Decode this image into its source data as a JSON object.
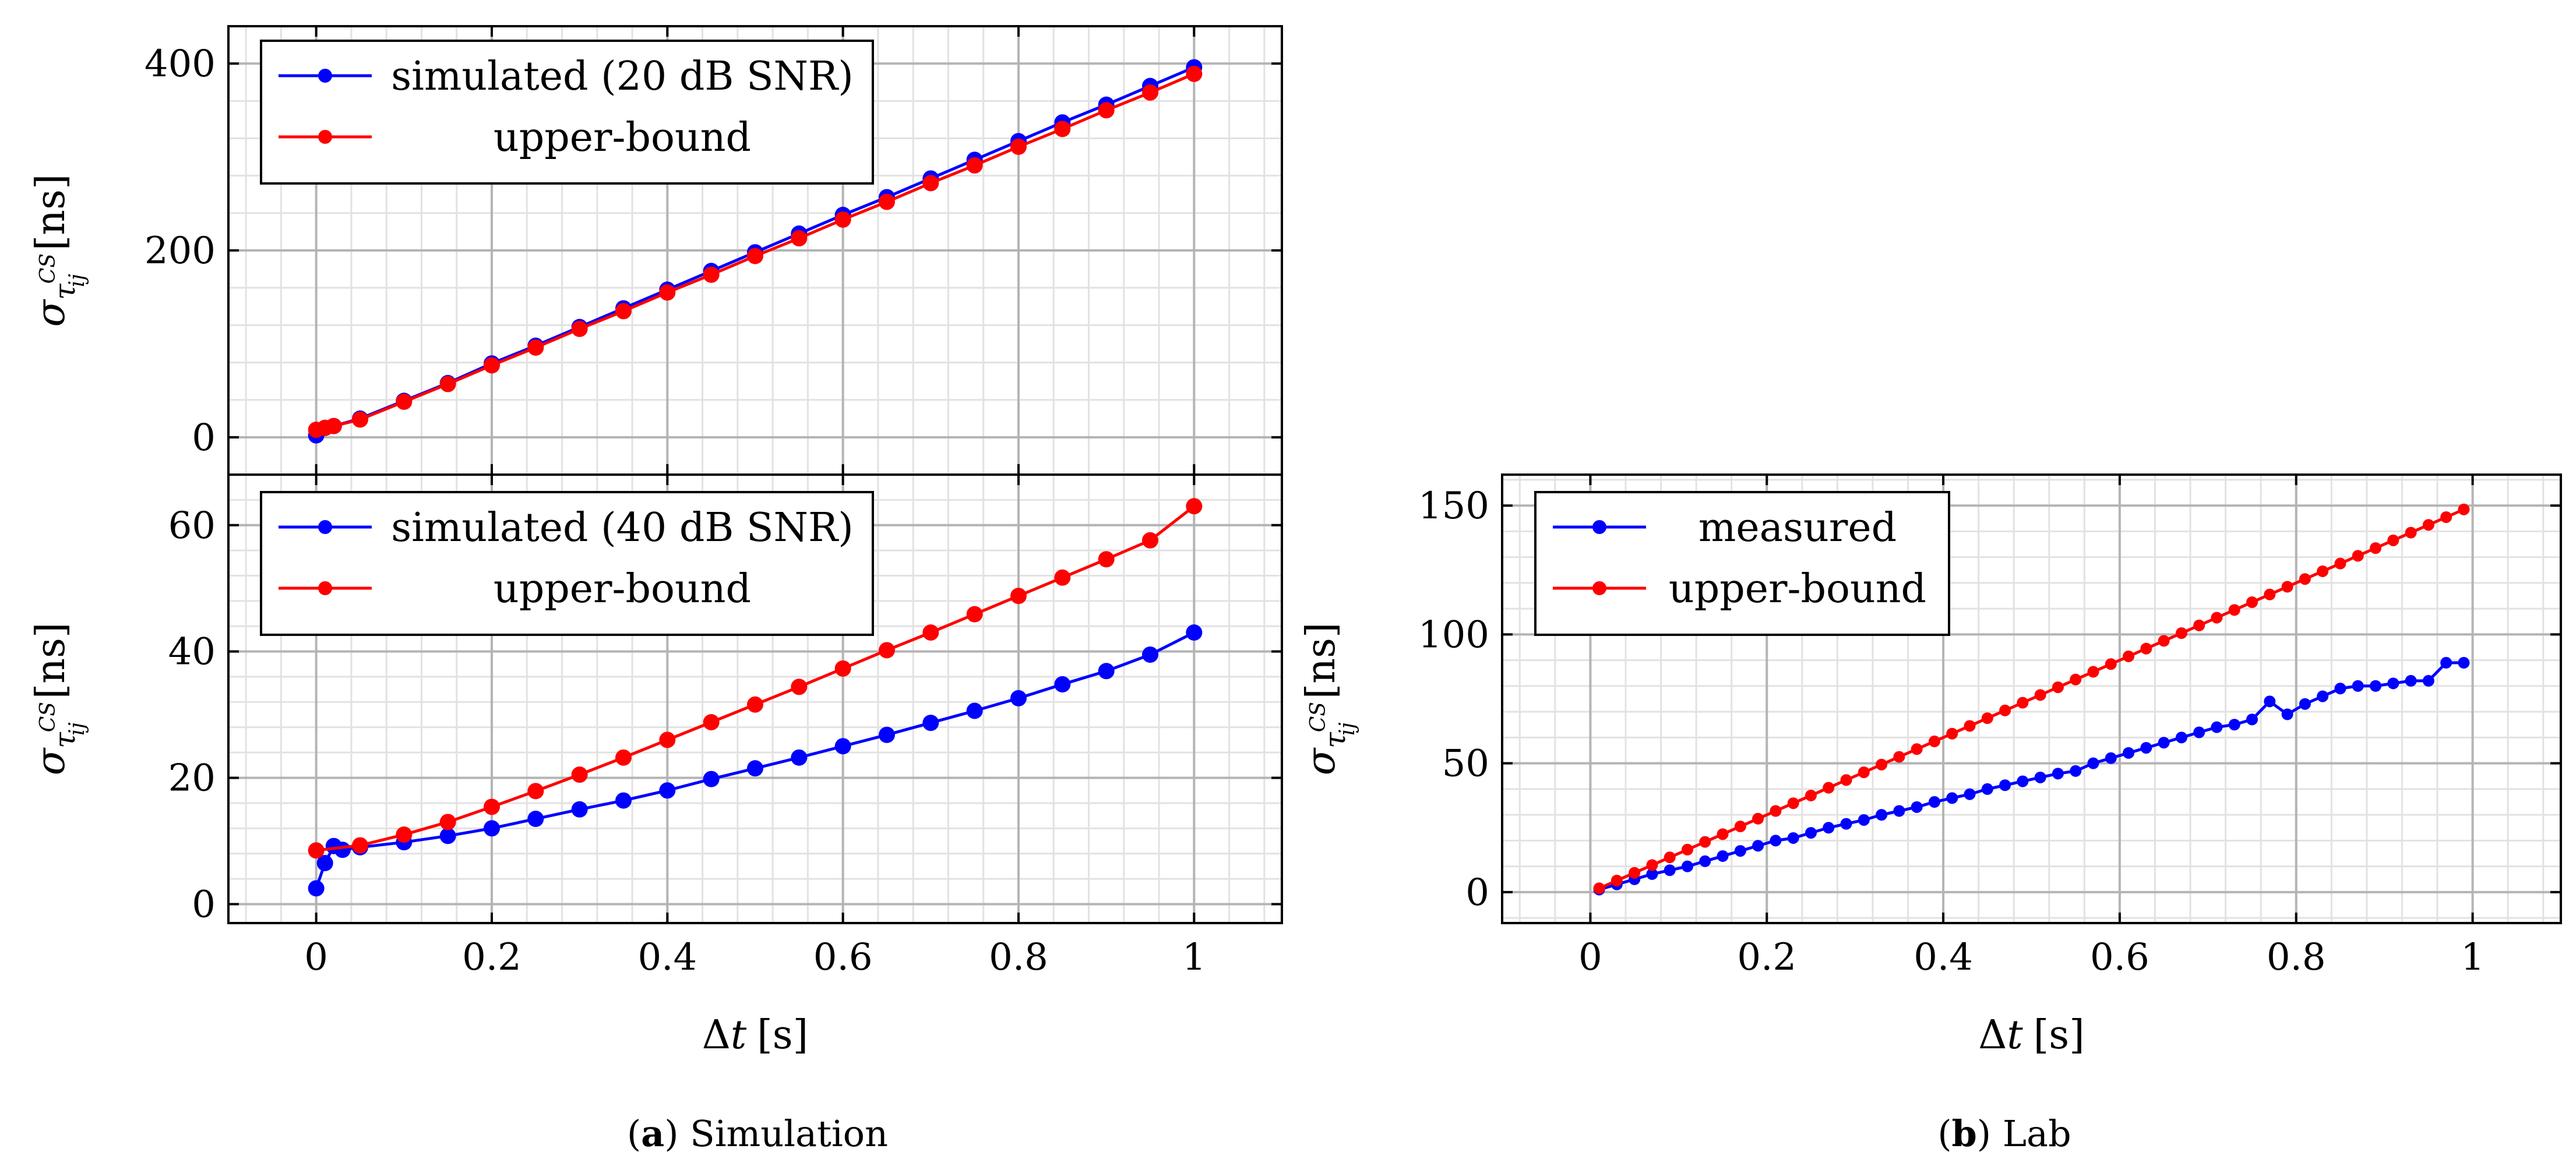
{
  "chart_data": [
    {
      "id": "a_top",
      "type": "line",
      "xlim": [
        -0.1,
        1.1
      ],
      "ylim": [
        -40,
        440
      ],
      "xticks": [],
      "yticks": [
        0,
        200,
        400
      ],
      "ylabel": {
        "sigma": "σ",
        "tau": "τ",
        "sup": "CS",
        "sub": "ij",
        "unit": "[ns]"
      },
      "legend": [
        {
          "name": "simulated (20 dB SNR)",
          "color": "#0000ff"
        },
        {
          "name": "upper-bound",
          "color": "#ff0000"
        }
      ],
      "series": [
        {
          "name": "simulated (20 dB SNR)",
          "color": "#0000ff",
          "x": [
            0.0,
            0.01,
            0.02,
            0.05,
            0.1,
            0.15,
            0.2,
            0.25,
            0.3,
            0.35,
            0.4,
            0.45,
            0.5,
            0.55,
            0.6,
            0.65,
            0.7,
            0.75,
            0.8,
            0.85,
            0.9,
            0.95,
            1.0
          ],
          "y": [
            2,
            10,
            12,
            20,
            39,
            58,
            79,
            98,
            118,
            138,
            158,
            178,
            198,
            218,
            238,
            257,
            277,
            297,
            317,
            337,
            356,
            376,
            396
          ]
        },
        {
          "name": "upper-bound",
          "color": "#ff0000",
          "x": [
            0.0,
            0.01,
            0.02,
            0.05,
            0.1,
            0.15,
            0.2,
            0.25,
            0.3,
            0.35,
            0.4,
            0.45,
            0.5,
            0.55,
            0.6,
            0.65,
            0.7,
            0.75,
            0.8,
            0.85,
            0.9,
            0.95,
            1.0
          ],
          "y": [
            8,
            10,
            12,
            19,
            38,
            57,
            77,
            96,
            116,
            135,
            155,
            174,
            194,
            213,
            233,
            252,
            272,
            291,
            311,
            330,
            350,
            369,
            389
          ]
        }
      ]
    },
    {
      "id": "a_bottom",
      "type": "line",
      "xlim": [
        -0.1,
        1.1
      ],
      "ylim": [
        -3,
        68
      ],
      "xticks": [
        0,
        0.2,
        0.4,
        0.6,
        0.8,
        1
      ],
      "yticks": [
        0,
        20,
        40,
        60
      ],
      "xlabel": {
        "delta": "Δ",
        "var": "t",
        "unit": "[s]"
      },
      "ylabel": {
        "sigma": "σ",
        "tau": "τ",
        "sup": "CS",
        "sub": "ij",
        "unit": "[ns]"
      },
      "legend": [
        {
          "name": "simulated (40 dB SNR)",
          "color": "#0000ff"
        },
        {
          "name": "upper-bound",
          "color": "#ff0000"
        }
      ],
      "series": [
        {
          "name": "simulated (40 dB SNR)",
          "color": "#0000ff",
          "x": [
            0.0,
            0.01,
            0.02,
            0.03,
            0.05,
            0.1,
            0.15,
            0.2,
            0.25,
            0.3,
            0.35,
            0.4,
            0.45,
            0.5,
            0.55,
            0.6,
            0.65,
            0.7,
            0.75,
            0.8,
            0.85,
            0.9,
            0.95,
            1.0
          ],
          "y": [
            2.5,
            6.5,
            9.2,
            8.6,
            9.0,
            9.8,
            10.8,
            12.0,
            13.5,
            15.0,
            16.4,
            18.0,
            19.8,
            21.5,
            23.2,
            25.0,
            26.8,
            28.7,
            30.6,
            32.6,
            34.8,
            36.9,
            39.5,
            43.0
          ]
        },
        {
          "name": "upper-bound",
          "color": "#ff0000",
          "x": [
            0.0,
            0.05,
            0.1,
            0.15,
            0.2,
            0.25,
            0.3,
            0.35,
            0.4,
            0.45,
            0.5,
            0.55,
            0.6,
            0.65,
            0.7,
            0.75,
            0.8,
            0.85,
            0.9,
            0.95,
            1.0
          ],
          "y": [
            8.5,
            9.3,
            11.0,
            13.0,
            15.4,
            17.9,
            20.5,
            23.2,
            26.0,
            28.8,
            31.6,
            34.4,
            37.3,
            40.2,
            43.0,
            45.9,
            48.8,
            51.7,
            54.6,
            57.6,
            63.0
          ]
        }
      ]
    },
    {
      "id": "b",
      "type": "line",
      "xlim": [
        -0.1,
        1.1
      ],
      "ylim": [
        -12,
        162
      ],
      "xticks": [
        0,
        0.2,
        0.4,
        0.6,
        0.8,
        1
      ],
      "yticks": [
        0,
        50,
        100,
        150
      ],
      "xlabel": {
        "delta": "Δ",
        "var": "t",
        "unit": "[s]"
      },
      "ylabel": {
        "sigma": "σ",
        "tau": "τ",
        "sup": "CS",
        "sub": "ij",
        "unit": "[ns]"
      },
      "legend": [
        {
          "name": "measured",
          "color": "#0000ff"
        },
        {
          "name": "upper-bound",
          "color": "#ff0000"
        }
      ],
      "series": [
        {
          "name": "measured",
          "color": "#0000ff",
          "x": [
            0.01,
            0.03,
            0.05,
            0.07,
            0.09,
            0.11,
            0.13,
            0.15,
            0.17,
            0.19,
            0.21,
            0.23,
            0.25,
            0.27,
            0.29,
            0.31,
            0.33,
            0.35,
            0.37,
            0.39,
            0.41,
            0.43,
            0.45,
            0.47,
            0.49,
            0.51,
            0.53,
            0.55,
            0.57,
            0.59,
            0.61,
            0.63,
            0.65,
            0.67,
            0.69,
            0.71,
            0.73,
            0.75,
            0.77,
            0.79,
            0.81,
            0.83,
            0.85,
            0.87,
            0.89,
            0.91,
            0.93,
            0.95,
            0.97,
            0.99
          ],
          "y": [
            1,
            3,
            5,
            7,
            8.5,
            10,
            12,
            14,
            16,
            18,
            20,
            21,
            23,
            25,
            26.5,
            28,
            30,
            31.5,
            33,
            35,
            36.5,
            38,
            40,
            41.5,
            43,
            44.5,
            46,
            47,
            50,
            52,
            54,
            56,
            58,
            60,
            62,
            64,
            65,
            67,
            74,
            69,
            73,
            76,
            79,
            80,
            80,
            81,
            82,
            82,
            89,
            89
          ]
        },
        {
          "name": "upper-bound",
          "color": "#ff0000",
          "x": [
            0.01,
            0.03,
            0.05,
            0.07,
            0.09,
            0.11,
            0.13,
            0.15,
            0.17,
            0.19,
            0.21,
            0.23,
            0.25,
            0.27,
            0.29,
            0.31,
            0.33,
            0.35,
            0.37,
            0.39,
            0.41,
            0.43,
            0.45,
            0.47,
            0.49,
            0.51,
            0.53,
            0.55,
            0.57,
            0.59,
            0.61,
            0.63,
            0.65,
            0.67,
            0.69,
            0.71,
            0.73,
            0.75,
            0.77,
            0.79,
            0.81,
            0.83,
            0.85,
            0.87,
            0.89,
            0.91,
            0.93,
            0.95,
            0.97,
            0.99
          ],
          "y": [
            1.5,
            4.5,
            7.5,
            10.5,
            13.5,
            16.5,
            19.5,
            22.5,
            25.5,
            28.5,
            31.5,
            34.5,
            37.5,
            40.5,
            43.5,
            46.5,
            49.5,
            52.5,
            55.5,
            58.5,
            61.5,
            64.5,
            67.5,
            70.5,
            73.5,
            76.5,
            79.5,
            82.5,
            85.5,
            88.5,
            91.5,
            94.5,
            97.5,
            100.5,
            103.5,
            106.5,
            109.5,
            112.5,
            115.5,
            118.5,
            121.5,
            124.5,
            127.5,
            130.5,
            133.5,
            136.5,
            139.5,
            142.5,
            145.5,
            148.5
          ]
        }
      ]
    }
  ],
  "captions": {
    "a": {
      "label": "a",
      "text": "Simulation"
    },
    "b": {
      "label": "b",
      "text": "Lab"
    }
  }
}
